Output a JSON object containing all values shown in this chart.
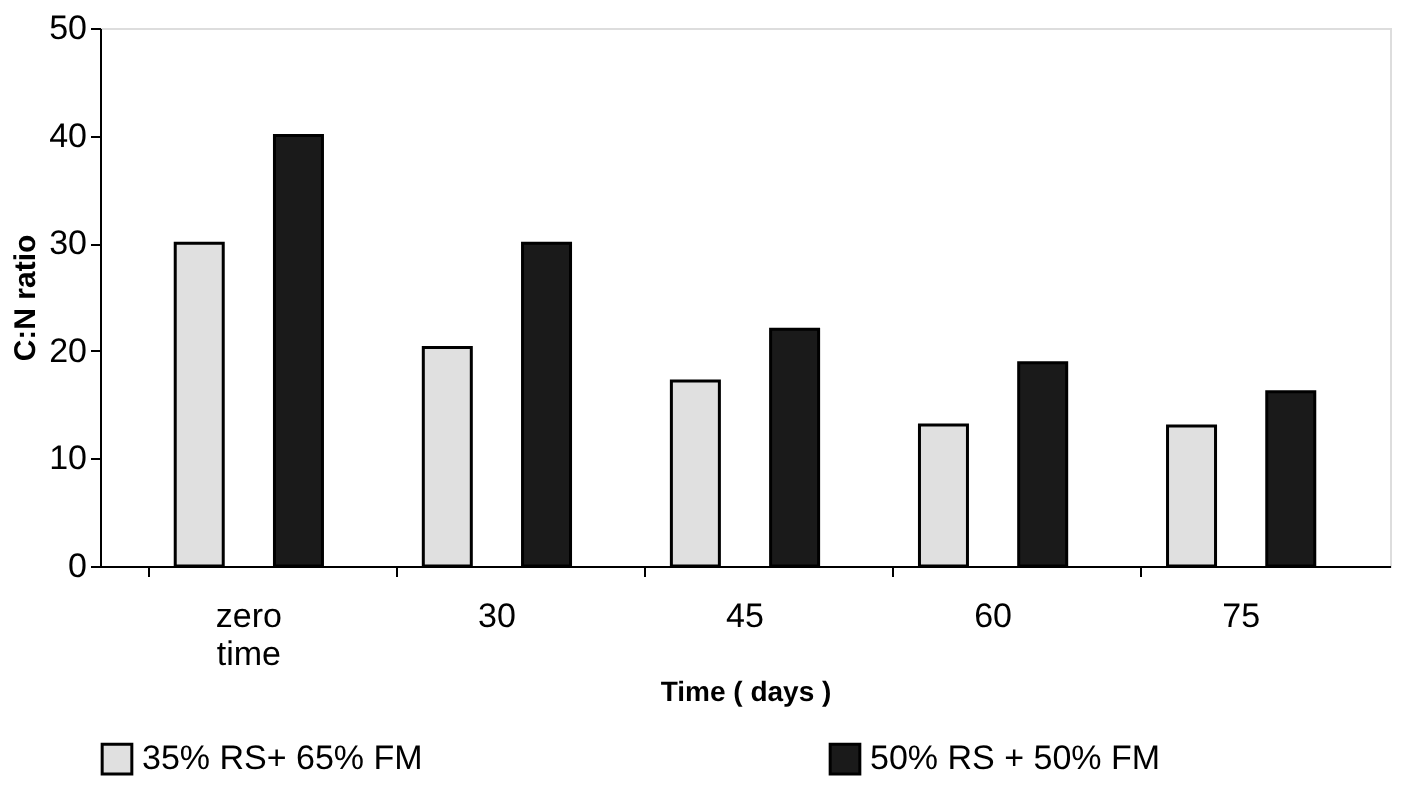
{
  "chart_data": {
    "type": "bar",
    "xlabel": "Time ( days )",
    "ylabel": "C:N ratio",
    "categories": [
      "zero time",
      "30",
      "45",
      "60",
      "75"
    ],
    "series": [
      {
        "name": "35% RS+ 65% FM",
        "color": "#e0e0e0",
        "values": [
          30,
          20.3,
          17.2,
          13.1,
          13
        ]
      },
      {
        "name": "50% RS + 50% FM",
        "color": "#1a1a1a",
        "values": [
          40,
          30,
          22,
          18.9,
          16.2
        ]
      }
    ],
    "ylim": [
      0,
      50
    ],
    "yticks": [
      0,
      10,
      20,
      30,
      40,
      50
    ],
    "grid": false,
    "legend": "bottom"
  }
}
